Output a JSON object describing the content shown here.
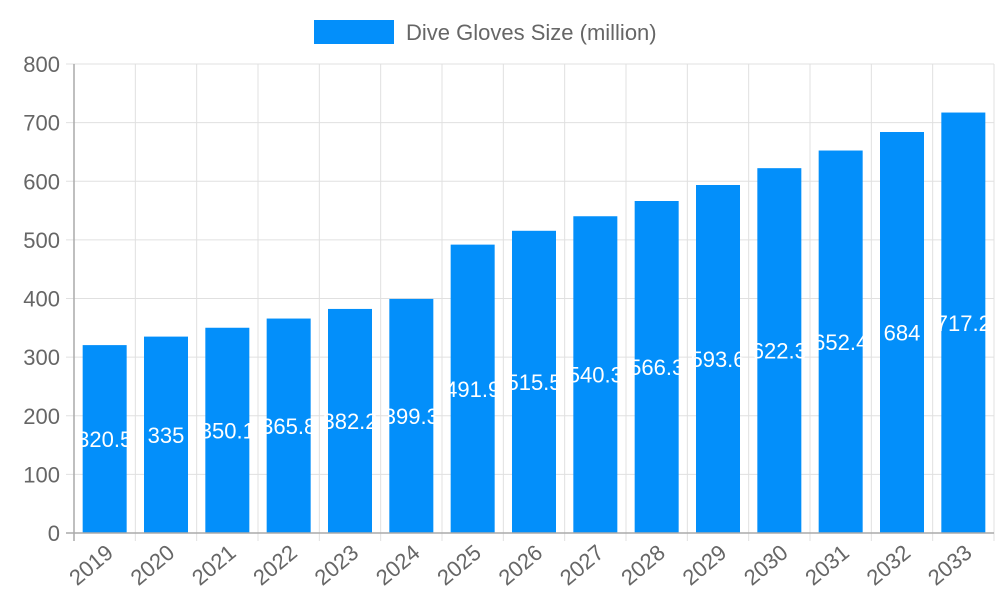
{
  "chart_data": {
    "type": "bar",
    "categories": [
      "2019",
      "2020",
      "2021",
      "2022",
      "2023",
      "2024",
      "2025",
      "2026",
      "2027",
      "2028",
      "2029",
      "2030",
      "2031",
      "2032",
      "2033"
    ],
    "series": [
      {
        "name": "Dive Gloves Size (million)",
        "values": [
          320.5,
          335,
          350.1,
          365.8,
          382.2,
          399.3,
          491.9,
          515.5,
          540.3,
          566.3,
          593.6,
          622.3,
          652.4,
          684,
          717.2
        ]
      }
    ],
    "ylim": [
      0,
      800
    ],
    "yticks": [
      0,
      100,
      200,
      300,
      400,
      500,
      600,
      700,
      800
    ],
    "grid": true,
    "legend": "top",
    "bar_color": "#038ffa",
    "xlabel": "",
    "ylabel": ""
  }
}
